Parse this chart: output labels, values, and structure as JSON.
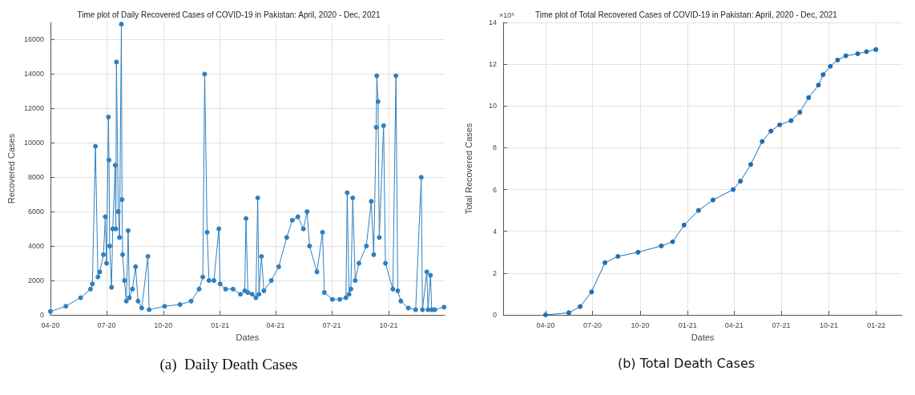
{
  "chart_data": [
    {
      "type": "line",
      "title": "Time plot of Daily Recovered Cases of COVID-19 in Pakistan: April, 2020 - Dec, 2021",
      "xlabel": "Dates",
      "ylabel": "Recovered Cases",
      "x": [
        "2020-04-01",
        "2020-04-26",
        "2020-05-20",
        "2020-06-05",
        "2020-06-08",
        "2020-06-13",
        "2020-06-17",
        "2020-06-20",
        "2020-06-26",
        "2020-06-29",
        "2020-07-01",
        "2020-07-04",
        "2020-07-05",
        "2020-07-06",
        "2020-07-09",
        "2020-07-11",
        "2020-07-15",
        "2020-07-16",
        "2020-07-17",
        "2020-07-20",
        "2020-07-22",
        "2020-07-25",
        "2020-07-26",
        "2020-07-27",
        "2020-07-30",
        "2020-08-02",
        "2020-08-05",
        "2020-08-07",
        "2020-08-12",
        "2020-08-17",
        "2020-08-21",
        "2020-08-27",
        "2020-09-06",
        "2020-09-08",
        "2020-10-03",
        "2020-10-28",
        "2020-11-15",
        "2020-11-28",
        "2020-12-04",
        "2020-12-07",
        "2020-12-11",
        "2020-12-14",
        "2020-12-22",
        "2020-12-30",
        "2021-01-01",
        "2021-01-10",
        "2021-01-22",
        "2021-02-03",
        "2021-02-10",
        "2021-02-12",
        "2021-02-15",
        "2021-02-22",
        "2021-02-28",
        "2021-03-03",
        "2021-03-05",
        "2021-03-09",
        "2021-03-13",
        "2021-03-25",
        "2021-04-06",
        "2021-04-19",
        "2021-04-28",
        "2021-05-07",
        "2021-05-16",
        "2021-05-22",
        "2021-05-26",
        "2021-06-07",
        "2021-06-16",
        "2021-06-19",
        "2021-07-02",
        "2021-07-14",
        "2021-07-24",
        "2021-07-26",
        "2021-07-29",
        "2021-08-01",
        "2021-08-04",
        "2021-08-08",
        "2021-08-14",
        "2021-08-26",
        "2021-09-03",
        "2021-09-07",
        "2021-09-11",
        "2021-09-12",
        "2021-09-14",
        "2021-09-16",
        "2021-09-23",
        "2021-09-26",
        "2021-10-08",
        "2021-10-13",
        "2021-10-16",
        "2021-10-21",
        "2021-11-02",
        "2021-11-14",
        "2021-11-23",
        "2021-11-25",
        "2021-12-02",
        "2021-12-04",
        "2021-12-08",
        "2021-12-10",
        "2021-12-15",
        "2021-12-30"
      ],
      "series": [
        {
          "color": "#2f80c0",
          "values": [
            200,
            500,
            1000,
            1500,
            1800,
            9800,
            2200,
            2500,
            3500,
            5700,
            3000,
            11500,
            9000,
            4000,
            1600,
            5000,
            8700,
            5000,
            14700,
            6000,
            4500,
            16900,
            6700,
            3500,
            2000,
            800,
            4900,
            1000,
            1500,
            2800,
            800,
            400,
            3400,
            300,
            500,
            600,
            800,
            1500,
            2200,
            14000,
            4800,
            2000,
            2000,
            5000,
            1800,
            1500,
            1500,
            1200,
            1400,
            5600,
            1300,
            1200,
            1000,
            6800,
            1200,
            3400,
            1400,
            2000,
            2800,
            4500,
            5500,
            5700,
            5000,
            6000,
            4000,
            2500,
            4800,
            1300,
            900,
            900,
            1000,
            7100,
            1200,
            1500,
            6800,
            2000,
            3000,
            4000,
            6600,
            3500,
            10900,
            13900,
            12400,
            4500,
            11000,
            3000,
            1500,
            13900,
            1400,
            800,
            400,
            300,
            8000,
            300,
            2500,
            300,
            2300,
            300,
            300,
            450
          ]
        }
      ],
      "xlim": [
        "2020-04-01",
        "2021-12-31"
      ],
      "xticks": [
        {
          "value": "2020-04-01",
          "label": "04-20"
        },
        {
          "value": "2020-07-01",
          "label": "07-20"
        },
        {
          "value": "2020-10-01",
          "label": "10-20"
        },
        {
          "value": "2021-01-01",
          "label": "01-21"
        },
        {
          "value": "2021-04-01",
          "label": "04-21"
        },
        {
          "value": "2021-07-01",
          "label": "07-21"
        },
        {
          "value": "2021-10-01",
          "label": "10-21"
        }
      ],
      "ylim": [
        0,
        17000
      ],
      "yticks": [
        0,
        2000,
        4000,
        6000,
        8000,
        10000,
        12000,
        14000,
        16000
      ],
      "grid": true,
      "marker": "circle",
      "line_style": "solid",
      "annotations": [
        "(a)  Daily Death Cases"
      ]
    },
    {
      "type": "line",
      "title": "Time plot of Total Recovered Cases of COVID-19 in Pakistan: April, 2020 - Dec, 2021",
      "xlabel": "Dates",
      "ylabel": "Total Recovered Cases",
      "x": [
        "2020-04-01",
        "2020-05-16",
        "2020-06-07",
        "2020-06-29",
        "2020-07-25",
        "2020-08-19",
        "2020-09-27",
        "2020-11-11",
        "2020-12-03",
        "2020-12-25",
        "2021-01-22",
        "2021-02-19",
        "2021-03-30",
        "2021-04-13",
        "2021-05-03",
        "2021-05-25",
        "2021-06-11",
        "2021-06-28",
        "2021-07-20",
        "2021-08-06",
        "2021-08-23",
        "2021-09-11",
        "2021-09-20",
        "2021-10-04",
        "2021-10-18",
        "2021-11-03",
        "2021-11-26",
        "2021-12-13",
        "2021-12-31"
      ],
      "series": [
        {
          "color": "#1f6fb2",
          "values": [
            0,
            0.1,
            0.4,
            1.1,
            2.5,
            2.8,
            3.0,
            3.3,
            3.5,
            4.3,
            5.0,
            5.5,
            6.0,
            6.4,
            7.2,
            8.3,
            8.8,
            9.1,
            9.3,
            9.7,
            10.4,
            11.0,
            11.5,
            11.9,
            12.2,
            12.4,
            12.5,
            12.6,
            12.7
          ]
        }
      ],
      "xlim": [
        "2020-01-10",
        "2022-02-20"
      ],
      "xticks": [
        {
          "value": "2020-04-01",
          "label": "04-20"
        },
        {
          "value": "2020-07-01",
          "label": "07-20"
        },
        {
          "value": "2020-10-01",
          "label": "10-20"
        },
        {
          "value": "2021-01-01",
          "label": "01-21"
        },
        {
          "value": "2021-04-01",
          "label": "04-21"
        },
        {
          "value": "2021-07-01",
          "label": "07-21"
        },
        {
          "value": "2021-10-01",
          "label": "10-21"
        },
        {
          "value": "2022-01-01",
          "label": "01-22"
        }
      ],
      "ylim": [
        0,
        14
      ],
      "yticks": [
        0,
        2,
        4,
        6,
        8,
        10,
        12,
        14
      ],
      "grid": true,
      "marker": "circle",
      "line_style": "solid",
      "annotations": [
        "(b) Total Death Cases",
        "×10⁵"
      ]
    }
  ]
}
